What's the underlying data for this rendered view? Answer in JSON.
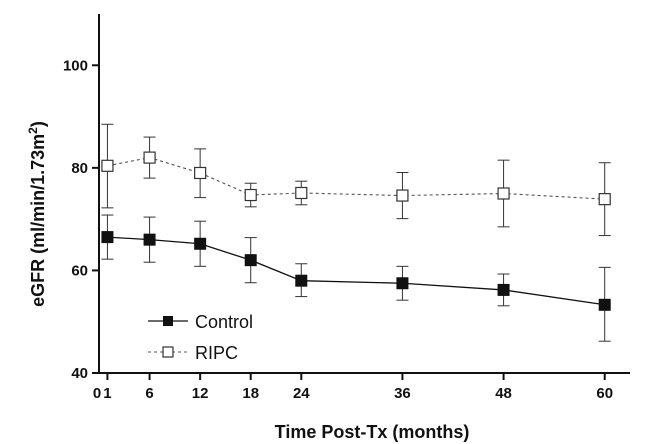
{
  "chart_data": {
    "type": "line",
    "title": "",
    "xlabel": "Time Post-Tx (months)",
    "ylabel_main": "eGFR (ml/min/1.73m",
    "ylabel_sup": "2",
    "ylabel_close": ")",
    "xlim": [
      0,
      63
    ],
    "ylim": [
      40,
      110
    ],
    "x_ticks": [
      0,
      1,
      6,
      12,
      18,
      24,
      36,
      48,
      60
    ],
    "y_ticks": [
      40,
      60,
      80,
      100
    ],
    "legend_position": "bottom-left",
    "grid": false,
    "series": [
      {
        "name": "Control",
        "marker": "filled-square",
        "line_style": "solid",
        "color": "#111111",
        "x": [
          1,
          6,
          12,
          18,
          24,
          36,
          48,
          60
        ],
        "y": [
          66.5,
          66.0,
          65.2,
          62.0,
          58.0,
          57.5,
          56.2,
          53.3
        ],
        "error_low": [
          62.2,
          61.6,
          60.8,
          57.6,
          54.9,
          54.2,
          53.1,
          46.2
        ],
        "error_high": [
          70.8,
          70.4,
          69.6,
          66.4,
          61.3,
          60.8,
          59.3,
          60.6
        ]
      },
      {
        "name": "RIPC",
        "marker": "open-square",
        "line_style": "dashed",
        "color": "#111111",
        "x": [
          1,
          6,
          12,
          18,
          24,
          36,
          48,
          60
        ],
        "y": [
          80.4,
          82.0,
          79.0,
          74.7,
          75.1,
          74.6,
          75.0,
          73.9
        ],
        "error_low": [
          72.2,
          78.0,
          74.2,
          72.4,
          72.8,
          70.1,
          68.5,
          66.8
        ],
        "error_high": [
          88.5,
          86.0,
          83.7,
          77.0,
          77.4,
          79.1,
          81.5,
          81.0
        ]
      }
    ]
  }
}
